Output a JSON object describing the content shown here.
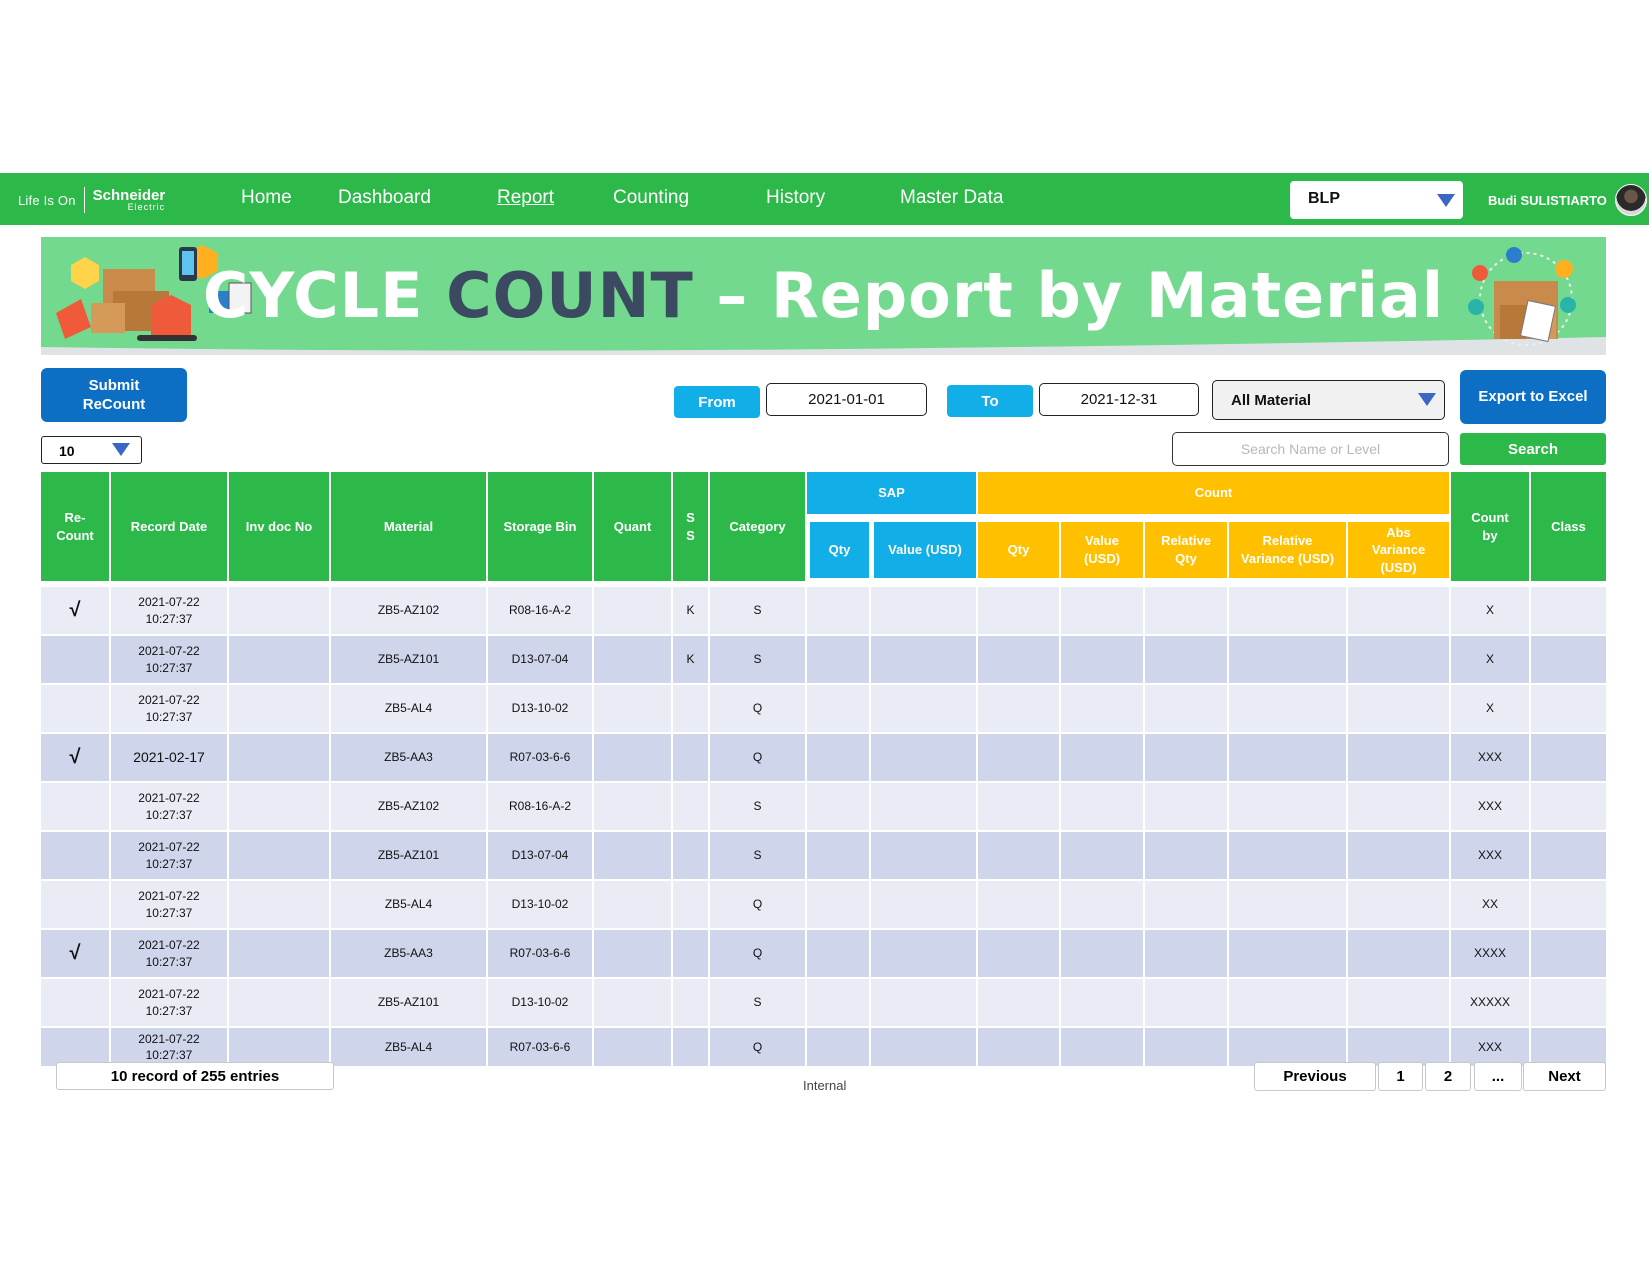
{
  "brand": {
    "tagline": "Life Is On",
    "name": "Schneider",
    "sub": "Electric"
  },
  "nav": {
    "items": [
      "Home",
      "Dashboard",
      "Report",
      "Counting",
      "History",
      "Master Data"
    ],
    "active": "Report"
  },
  "site_select": {
    "value": "BLP"
  },
  "user": {
    "name": "Budi SULISTIARTO"
  },
  "banner": {
    "title_part1": "CYCLE ",
    "title_part2": "COUNT",
    "title_part3": " – Report by Material"
  },
  "controls": {
    "submit_label": "Submit\nReCount",
    "from_label": "From",
    "from_value": "2021-01-01",
    "to_label": "To",
    "to_value": "2021-12-31",
    "material_filter": "All Material",
    "export_label": "Export to Excel",
    "page_length": "10",
    "search_placeholder": "Search Name or Level",
    "search_label": "Search"
  },
  "table": {
    "headers": {
      "recount": "Re-\nCount",
      "record_date": "Record Date",
      "inv_doc": "Inv doc No",
      "material": "Material",
      "storage_bin": "Storage Bin",
      "quant": "Quant",
      "ss": "S\nS",
      "category": "Category",
      "sap": "SAP",
      "count": "Count",
      "sap_qty": "Qty",
      "sap_value": "Value (USD)",
      "cnt_qty": "Qty",
      "cnt_value": "Value\n(USD)",
      "rel_qty": "Relative\nQty",
      "rel_var": "Relative\nVariance (USD)",
      "abs_var": "Abs\nVariance\n(USD)",
      "count_by": "Count\nby",
      "class": "Class"
    },
    "rows": [
      {
        "recount": "√",
        "date": "2021-07-22\n10:27:37",
        "material": "ZB5-AZ102",
        "bin": "R08-16-A-2",
        "ss": "K",
        "category": "S",
        "count_by": "X"
      },
      {
        "recount": "",
        "date": "2021-07-22\n10:27:37",
        "material": "ZB5-AZ101",
        "bin": "D13-07-04",
        "ss": "K",
        "category": "S",
        "count_by": "X"
      },
      {
        "recount": "",
        "date": "2021-07-22\n10:27:37",
        "material": "ZB5-AL4",
        "bin": "D13-10-02",
        "ss": "",
        "category": "Q",
        "count_by": "X"
      },
      {
        "recount": "√",
        "date": "2021-02-17",
        "material": "ZB5-AA3",
        "bin": "R07-03-6-6",
        "ss": "",
        "category": "Q",
        "count_by": "XXX"
      },
      {
        "recount": "",
        "date": "2021-07-22\n10:27:37",
        "material": "ZB5-AZ102",
        "bin": "R08-16-A-2",
        "ss": "",
        "category": "S",
        "count_by": "XXX"
      },
      {
        "recount": "",
        "date": "2021-07-22\n10:27:37",
        "material": "ZB5-AZ101",
        "bin": "D13-07-04",
        "ss": "",
        "category": "S",
        "count_by": "XXX"
      },
      {
        "recount": "",
        "date": "2021-07-22\n10:27:37",
        "material": "ZB5-AL4",
        "bin": "D13-10-02",
        "ss": "",
        "category": "Q",
        "count_by": "XX"
      },
      {
        "recount": "√",
        "date": "2021-07-22\n10:27:37",
        "material": "ZB5-AA3",
        "bin": "R07-03-6-6",
        "ss": "",
        "category": "Q",
        "count_by": "XXXX"
      },
      {
        "recount": "",
        "date": "2021-07-22\n10:27:37",
        "material": "ZB5-AZ101",
        "bin": "D13-10-02",
        "ss": "",
        "category": "S",
        "count_by": "XXXXX"
      },
      {
        "recount": "",
        "date": "2021-07-22\n10:27:37",
        "material": "ZB5-AL4",
        "bin": "R07-03-6-6",
        "ss": "",
        "category": "Q",
        "count_by": "XXX"
      }
    ]
  },
  "footer": {
    "entries": "10 record of 255 entries",
    "classification": "Internal",
    "pagination": {
      "previous": "Previous",
      "pages": [
        "1",
        "2",
        "..."
      ],
      "next": "Next"
    }
  },
  "colors": {
    "green": "#2db84a",
    "blue": "#0d6fc4",
    "sky": "#12aee8",
    "amber": "#ffc000",
    "banner": "#72d98e"
  }
}
